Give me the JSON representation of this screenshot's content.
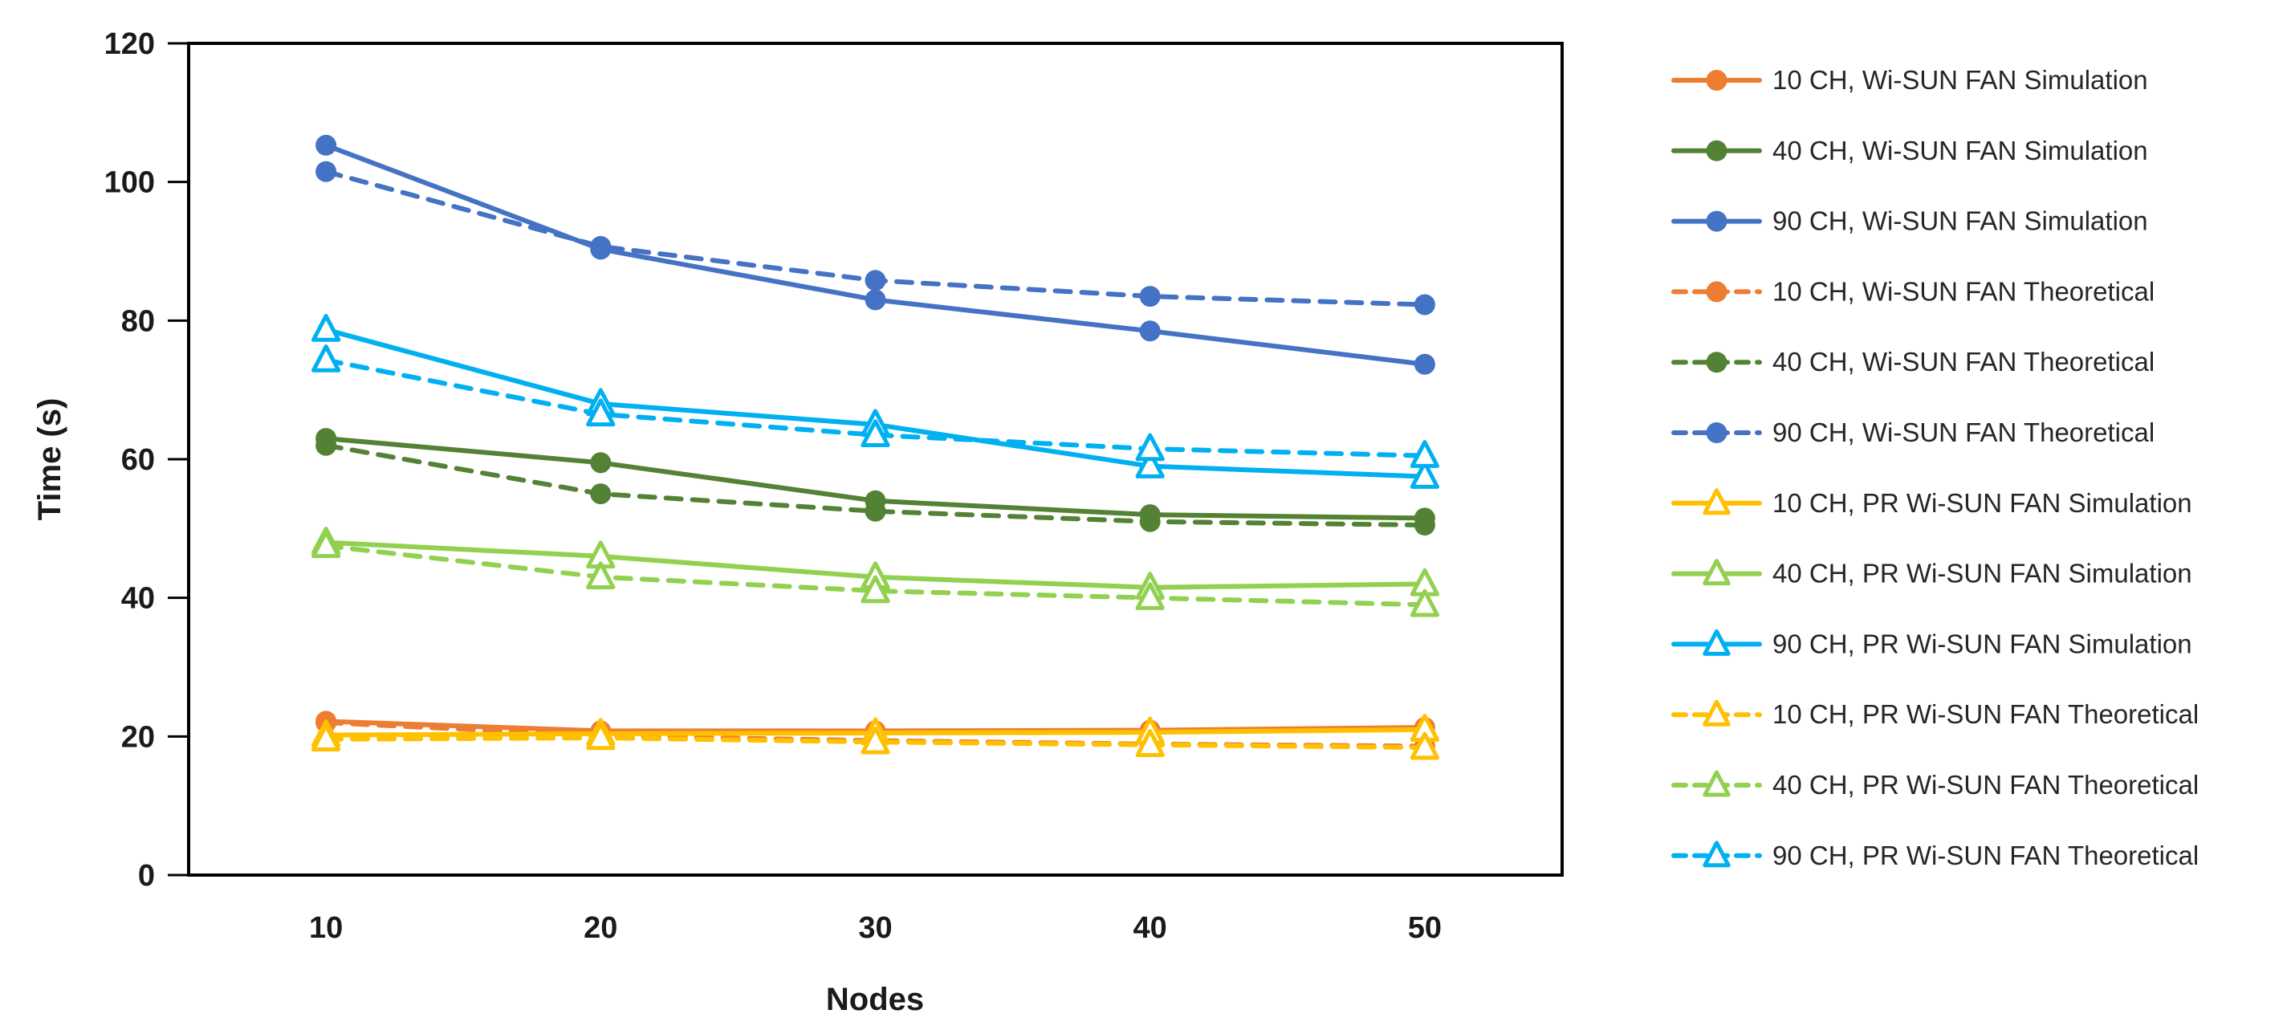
{
  "chart_data": {
    "type": "line",
    "title": "",
    "xlabel": "Nodes",
    "ylabel": "Time (s)",
    "x": [
      10,
      20,
      30,
      40,
      50
    ],
    "x_tick_labels": [
      "10",
      "20",
      "30",
      "40",
      "50"
    ],
    "y_ticks": [
      0,
      20,
      40,
      60,
      80,
      100,
      120
    ],
    "y_tick_labels": [
      "0",
      "20",
      "40",
      "60",
      "80",
      "100",
      "120"
    ],
    "ylim": [
      0,
      120
    ],
    "grid": false,
    "legend_position": "right",
    "plot_border_color": "#000000",
    "series": [
      {
        "name": "10 CH, Wi-SUN FAN Simulation",
        "color": "#ED7D31",
        "line_style": "solid",
        "marker": "circle",
        "values": [
          22.2,
          20.8,
          20.8,
          20.9,
          21.3
        ]
      },
      {
        "name": "40 CH, Wi-SUN FAN Simulation",
        "color": "#548235",
        "line_style": "solid",
        "marker": "circle",
        "values": [
          63.0,
          59.5,
          54.0,
          52.0,
          51.5
        ]
      },
      {
        "name": "90 CH, Wi-SUN FAN Simulation",
        "color": "#4472C4",
        "line_style": "solid",
        "marker": "circle",
        "values": [
          105.3,
          90.3,
          83.0,
          78.5,
          73.7
        ]
      },
      {
        "name": "10 CH, Wi-SUN FAN Theoretical",
        "color": "#ED7D31",
        "line_style": "dashed",
        "marker": "circle",
        "values": [
          22.0,
          20.1,
          19.4,
          18.9,
          18.6
        ]
      },
      {
        "name": "40 CH, Wi-SUN FAN Theoretical",
        "color": "#548235",
        "line_style": "dashed",
        "marker": "circle",
        "values": [
          62.0,
          55.0,
          52.5,
          51.0,
          50.5
        ]
      },
      {
        "name": "90 CH, Wi-SUN FAN Theoretical",
        "color": "#4472C4",
        "line_style": "dashed",
        "marker": "circle",
        "values": [
          101.5,
          90.7,
          85.8,
          83.5,
          82.3
        ]
      },
      {
        "name": "10 CH, PR Wi-SUN FAN Simulation",
        "color": "#FFC000",
        "line_style": "solid",
        "marker": "triangle",
        "values": [
          20.2,
          20.4,
          20.5,
          20.6,
          21.0
        ]
      },
      {
        "name": "40 CH, PR Wi-SUN FAN Simulation",
        "color": "#92D050",
        "line_style": "solid",
        "marker": "triangle",
        "values": [
          48.0,
          46.0,
          43.0,
          41.5,
          42.0
        ]
      },
      {
        "name": "90 CH, PR Wi-SUN FAN Simulation",
        "color": "#00B0F0",
        "line_style": "solid",
        "marker": "triangle",
        "values": [
          78.7,
          68.0,
          65.0,
          59.0,
          57.5
        ]
      },
      {
        "name": "10 CH, PR Wi-SUN FAN Theoretical",
        "color": "#FFC000",
        "line_style": "dashed",
        "marker": "triangle",
        "values": [
          19.6,
          19.8,
          19.2,
          18.8,
          18.4
        ]
      },
      {
        "name": "40 CH, PR Wi-SUN FAN Theoretical",
        "color": "#92D050",
        "line_style": "dashed",
        "marker": "triangle",
        "values": [
          47.5,
          43.0,
          41.0,
          40.0,
          39.0
        ]
      },
      {
        "name": "90 CH, PR Wi-SUN FAN Theoretical",
        "color": "#00B0F0",
        "line_style": "dashed",
        "marker": "triangle",
        "values": [
          74.3,
          66.5,
          63.5,
          61.5,
          60.5
        ]
      }
    ]
  }
}
